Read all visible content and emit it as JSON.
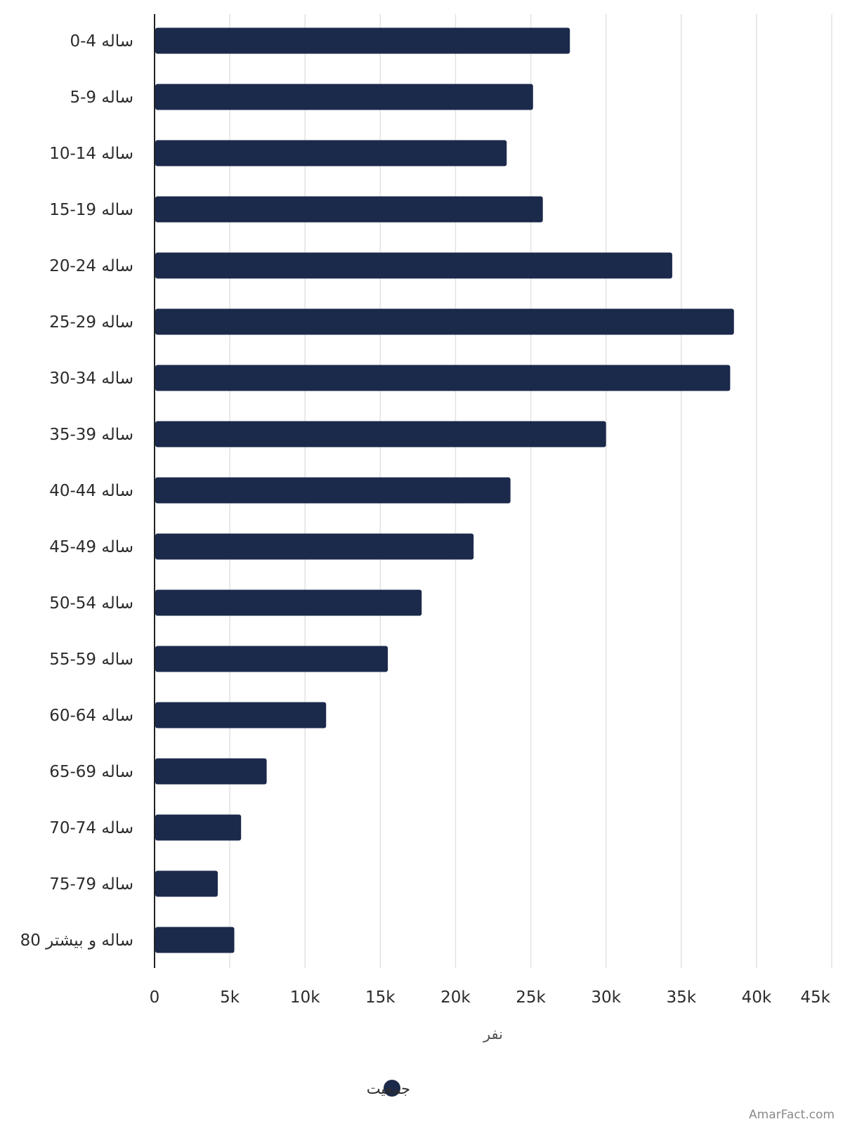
{
  "chart_data": {
    "type": "bar",
    "orientation": "horizontal",
    "categories": [
      "0-4 ساله",
      "5-9 ساله",
      "10-14 ساله",
      "15-19 ساله",
      "20-24 ساله",
      "25-29 ساله",
      "30-34 ساله",
      "35-39 ساله",
      "40-44 ساله",
      "45-49 ساله",
      "50-54 ساله",
      "55-59 ساله",
      "60-64 ساله",
      "65-69 ساله",
      "70-74 ساله",
      "75-79 ساله",
      "80 ساله و بیشتر"
    ],
    "series": [
      {
        "name": "جمعیت",
        "color": "#1b294b",
        "values": [
          27600,
          25150,
          23400,
          25800,
          34400,
          38500,
          38250,
          30000,
          23650,
          21200,
          17750,
          15500,
          11400,
          7450,
          5750,
          4200,
          5300
        ]
      }
    ],
    "xlabel": "نفر",
    "ylabel": "",
    "xlim": [
      0,
      45000
    ],
    "ticks": [
      {
        "value": 0,
        "label": "0"
      },
      {
        "value": 5000,
        "label": "5k"
      },
      {
        "value": 10000,
        "label": "10k"
      },
      {
        "value": 15000,
        "label": "15k"
      },
      {
        "value": 20000,
        "label": "20k"
      },
      {
        "value": 25000,
        "label": "25k"
      },
      {
        "value": 30000,
        "label": "30k"
      },
      {
        "value": 35000,
        "label": "35k"
      },
      {
        "value": 40000,
        "label": "40k"
      },
      {
        "value": 45000,
        "label": "45k"
      }
    ],
    "grid": true,
    "legend_position": "bottom-center",
    "gridline_color": "#e2e2e2",
    "axis_color": "#222222"
  },
  "watermark": "AmarFact.com"
}
